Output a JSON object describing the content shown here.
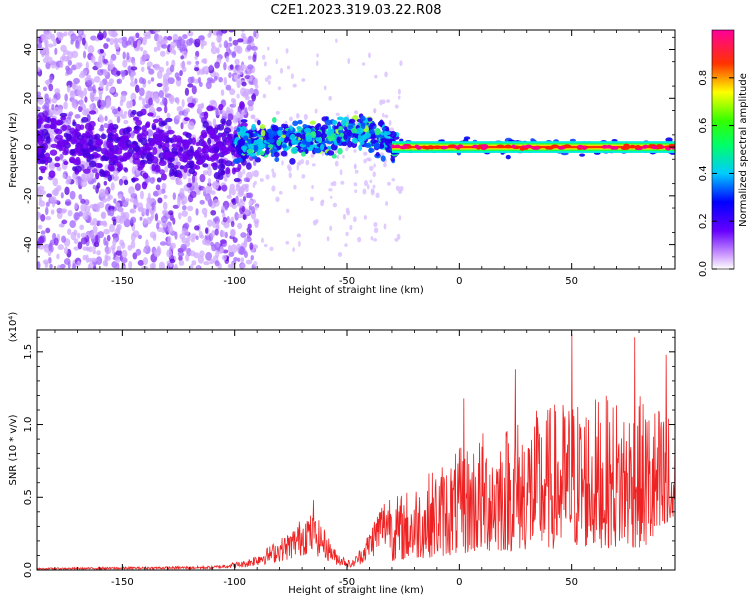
{
  "chart_data": [
    {
      "type": "heatmap",
      "title": "C2E1.2023.319.03.22.R08",
      "xlabel": "Height of straight line (km)",
      "ylabel": "Frequency (Hz)",
      "xlim": [
        -188,
        96
      ],
      "ylim": [
        -50,
        48
      ],
      "xticks": [
        -150,
        -100,
        -50,
        0,
        50
      ],
      "yticks": [
        40,
        20,
        0,
        -20,
        -40
      ],
      "colorbar": {
        "label": "Normalized spectral amplitude",
        "range": [
          0.0,
          1.0
        ],
        "ticks": [
          0.0,
          0.2,
          0.4,
          0.6,
          0.8
        ],
        "colors": [
          "#ffffff",
          "#9933ff",
          "#0000ff",
          "#00ffff",
          "#00ff00",
          "#ffff00",
          "#ff0000",
          "#ff0099"
        ]
      },
      "regions": [
        {
          "x_range": [
            -188,
            -100
          ],
          "freq_spread": 50,
          "amplitude": 0.25
        },
        {
          "x_range": [
            -100,
            -30
          ],
          "freq_center": [
            0,
            8
          ],
          "amplitude": 0.45
        },
        {
          "x_range": [
            -30,
            96
          ],
          "freq_center": 0,
          "amplitude": 0.9
        }
      ]
    },
    {
      "type": "line",
      "xlabel": "Height of straight line (km)",
      "ylabel": "SNR (10 * v/v)",
      "y_multiplier": "(x10⁴)",
      "xlim": [
        -188,
        96
      ],
      "ylim": [
        0,
        1.65
      ],
      "xticks": [
        -150,
        -100,
        -50,
        0,
        50
      ],
      "yticks": [
        0.0,
        0.5,
        1.0,
        1.5
      ],
      "series": [
        {
          "color": "#ee2222",
          "envelope": {
            "x": [
              -188,
              -150,
              -110,
              -95,
              -85,
              -75,
              -68,
              -62,
              -55,
              -48,
              -42,
              -35,
              -30,
              -25,
              -20,
              -10,
              0,
              10,
              20,
              30,
              40,
              50,
              60,
              70,
              80,
              90,
              96
            ],
            "y": [
              0.01,
              0.015,
              0.02,
              0.05,
              0.12,
              0.2,
              0.3,
              0.25,
              0.1,
              0.04,
              0.15,
              0.35,
              0.42,
              0.45,
              0.5,
              0.6,
              0.7,
              0.8,
              0.85,
              0.9,
              0.95,
              1.0,
              1.0,
              1.0,
              1.0,
              0.95,
              0.9
            ]
          },
          "peaks": [
            {
              "x": -65,
              "y": 0.48
            },
            {
              "x": 2,
              "y": 1.18
            },
            {
              "x": 25,
              "y": 1.38
            },
            {
              "x": 50,
              "y": 1.62
            },
            {
              "x": 78,
              "y": 1.6
            },
            {
              "x": 92,
              "y": 1.48
            }
          ]
        }
      ]
    }
  ]
}
